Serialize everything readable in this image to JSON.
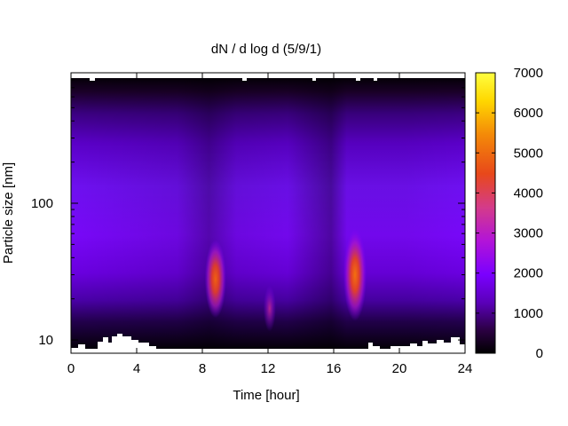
{
  "chart_data": {
    "type": "heatmap",
    "title": "dN / d log d (5/9/1)",
    "xlabel": "Time [hour]",
    "ylabel": "Particle size [nm]",
    "x_range": [
      0,
      24
    ],
    "y_range": [
      8,
      900
    ],
    "y_scale": "log",
    "x_ticks": [
      0,
      4,
      8,
      12,
      16,
      20,
      24
    ],
    "y_ticks": [
      10,
      100
    ],
    "colorbar": {
      "range": [
        0,
        7000
      ],
      "ticks": [
        0,
        1000,
        2000,
        3000,
        4000,
        5000,
        6000,
        7000
      ],
      "colors": [
        "#000000",
        "#7a00ff",
        "#d02bbd",
        "#e8481a",
        "#ffd700",
        "#ffff40"
      ]
    },
    "features": [
      {
        "time_hour": 8.8,
        "size_nm": 28,
        "value": 4800
      },
      {
        "time_hour": 12.1,
        "size_nm": 17,
        "value": 2900
      },
      {
        "time_hour": 17.3,
        "size_nm": 30,
        "value": 5300
      }
    ]
  }
}
